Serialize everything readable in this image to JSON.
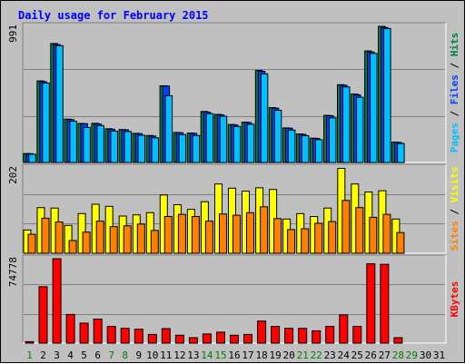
{
  "chart_data": {
    "type": "bar",
    "title": "Daily usage for February 2015",
    "categories": [
      "1",
      "2",
      "3",
      "4",
      "5",
      "6",
      "7",
      "8",
      "9",
      "10",
      "11",
      "12",
      "13",
      "14",
      "15",
      "16",
      "17",
      "18",
      "19",
      "20",
      "21",
      "22",
      "23",
      "24",
      "25",
      "26",
      "27",
      "28",
      "29",
      "30",
      "31"
    ],
    "weekend_days": [
      1,
      7,
      8,
      14,
      15,
      21,
      22,
      28,
      29
    ],
    "panels": [
      {
        "id": "top",
        "max_label": "991",
        "ymax": 991,
        "series": [
          {
            "name": "Hits",
            "color": "#008040",
            "values": [
              65,
              594,
              866,
              316,
              284,
              285,
              246,
              240,
              212,
              196,
              558,
              219,
              214,
              371,
              350,
              277,
              294,
              670,
              400,
              252,
              208,
              177,
              343,
              566,
              498,
              812,
              991,
              148,
              null,
              null,
              null
            ]
          },
          {
            "name": "Files",
            "color": "#0040ff",
            "values": [
              64,
              588,
              858,
              312,
              282,
              281,
              242,
              238,
              210,
              193,
              556,
              217,
              212,
              367,
              346,
              273,
              290,
              664,
              395,
              250,
              205,
              175,
              340,
              562,
              492,
              804,
              982,
              146,
              null,
              null,
              null
            ]
          },
          {
            "name": "Pages",
            "color": "#00c0ff",
            "values": [
              60,
              578,
              850,
              300,
              255,
              268,
              228,
              225,
              198,
              180,
              486,
              203,
              196,
              355,
              336,
              262,
              278,
              645,
              380,
              236,
              195,
              166,
              325,
              550,
              475,
              794,
              975,
              138,
              null,
              null,
              null
            ]
          }
        ],
        "axis_label_parts": [
          "Pages",
          " / ",
          "Files",
          " / ",
          "Hits"
        ]
      },
      {
        "id": "middle",
        "max_label": "202",
        "ymax": 202,
        "series": [
          {
            "name": "Visits",
            "color": "#ffff00",
            "values": [
              55,
              108,
              107,
              66,
              94,
              116,
              111,
              88,
              91,
              96,
              138,
              115,
              104,
              122,
              164,
              154,
              147,
              155,
              151,
              81,
              94,
              87,
              107,
              201,
              164,
              145,
              148,
              81,
              null,
              null,
              null
            ]
          },
          {
            "name": "Sites",
            "color": "#ff8000",
            "values": [
              45,
              83,
              74,
              30,
              50,
              76,
              63,
              65,
              69,
              54,
              87,
              92,
              87,
              76,
              93,
              90,
              96,
              110,
              82,
              56,
              58,
              71,
              75,
              125,
              108,
              85,
              92,
              49,
              null,
              null,
              null
            ]
          }
        ],
        "axis_label_parts": [
          "Sites",
          " / ",
          "Visits"
        ]
      },
      {
        "id": "bottom",
        "max_label": "74778",
        "ymax": 74778,
        "series": [
          {
            "name": "KBytes",
            "color": "#ff0000",
            "values": [
              1270,
              50000,
              74778,
              25400,
              17700,
              21300,
              14800,
              13100,
              12300,
              7700,
              12900,
              7000,
              4800,
              8100,
              9700,
              7000,
              7700,
              19500,
              14800,
              13100,
              13100,
              10900,
              14800,
              25000,
              14800,
              70300,
              69800,
              4800,
              null,
              null,
              null
            ]
          }
        ],
        "axis_label_parts": [
          "KBytes"
        ]
      }
    ],
    "colors": {
      "title": "#0000ff",
      "weekday": "#000000",
      "weekend": "#008000",
      "background": "#c0c0c0",
      "grid": "#808080"
    }
  }
}
